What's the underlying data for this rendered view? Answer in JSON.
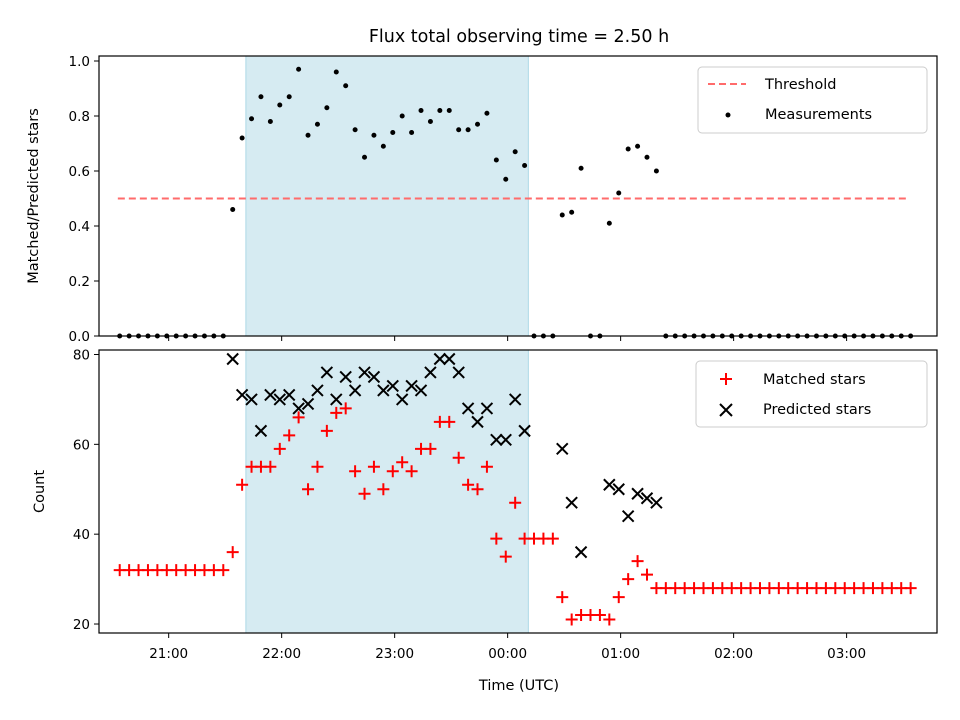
{
  "chart_data": [
    {
      "type": "scatter",
      "title": "Flux total observing time = 2.50 h",
      "xlabel": "",
      "ylabel": "Matched/Predicted stars",
      "ylim": [
        0,
        1.0
      ],
      "yticks": [
        "0.0",
        "0.2",
        "0.4",
        "0.6",
        "0.8",
        "1.0"
      ],
      "xlim": [
        "20:23",
        "03:48"
      ],
      "shaded_region": [
        "21:41",
        "00:11"
      ],
      "grid": false,
      "legend_position": "top-right",
      "threshold": {
        "name": "Threshold",
        "value": 0.5,
        "x_range": [
          "20:33",
          "03:33"
        ],
        "color": "#ff6b6b"
      },
      "series": [
        {
          "name": "Measurements",
          "color": "#000000",
          "marker": "dot",
          "points": [
            [
              "20:34",
              0.0
            ],
            [
              "20:39",
              0.0
            ],
            [
              "20:44",
              0.0
            ],
            [
              "20:49",
              0.0
            ],
            [
              "20:54",
              0.0
            ],
            [
              "20:59",
              0.0
            ],
            [
              "21:04",
              0.0
            ],
            [
              "21:09",
              0.0
            ],
            [
              "21:14",
              0.0
            ],
            [
              "21:19",
              0.0
            ],
            [
              "21:24",
              0.0
            ],
            [
              "21:29",
              0.0
            ],
            [
              "21:34",
              0.46
            ],
            [
              "21:39",
              0.72
            ],
            [
              "21:44",
              0.79
            ],
            [
              "21:49",
              0.87
            ],
            [
              "21:54",
              0.78
            ],
            [
              "21:59",
              0.84
            ],
            [
              "22:04",
              0.87
            ],
            [
              "22:09",
              0.97
            ],
            [
              "22:14",
              0.73
            ],
            [
              "22:19",
              0.77
            ],
            [
              "22:24",
              0.83
            ],
            [
              "22:29",
              0.96
            ],
            [
              "22:34",
              0.91
            ],
            [
              "22:39",
              0.75
            ],
            [
              "22:44",
              0.65
            ],
            [
              "22:49",
              0.73
            ],
            [
              "22:54",
              0.69
            ],
            [
              "22:59",
              0.74
            ],
            [
              "23:04",
              0.8
            ],
            [
              "23:09",
              0.74
            ],
            [
              "23:14",
              0.82
            ],
            [
              "23:19",
              0.78
            ],
            [
              "23:24",
              0.82
            ],
            [
              "23:29",
              0.82
            ],
            [
              "23:34",
              0.75
            ],
            [
              "23:39",
              0.75
            ],
            [
              "23:44",
              0.77
            ],
            [
              "23:49",
              0.81
            ],
            [
              "23:54",
              0.64
            ],
            [
              "23:59",
              0.57
            ],
            [
              "00:04",
              0.67
            ],
            [
              "00:09",
              0.62
            ],
            [
              "00:14",
              0.0
            ],
            [
              "00:19",
              0.0
            ],
            [
              "00:24",
              0.0
            ],
            [
              "00:29",
              0.44
            ],
            [
              "00:34",
              0.45
            ],
            [
              "00:39",
              0.61
            ],
            [
              "00:44",
              0.0
            ],
            [
              "00:49",
              0.0
            ],
            [
              "00:54",
              0.41
            ],
            [
              "00:59",
              0.52
            ],
            [
              "01:04",
              0.68
            ],
            [
              "01:09",
              0.69
            ],
            [
              "01:14",
              0.65
            ],
            [
              "01:19",
              0.6
            ],
            [
              "01:24",
              0.0
            ],
            [
              "01:29",
              0.0
            ],
            [
              "01:34",
              0.0
            ],
            [
              "01:39",
              0.0
            ],
            [
              "01:44",
              0.0
            ],
            [
              "01:49",
              0.0
            ],
            [
              "01:54",
              0.0
            ],
            [
              "01:59",
              0.0
            ],
            [
              "02:04",
              0.0
            ],
            [
              "02:09",
              0.0
            ],
            [
              "02:14",
              0.0
            ],
            [
              "02:19",
              0.0
            ],
            [
              "02:24",
              0.0
            ],
            [
              "02:29",
              0.0
            ],
            [
              "02:34",
              0.0
            ],
            [
              "02:39",
              0.0
            ],
            [
              "02:44",
              0.0
            ],
            [
              "02:49",
              0.0
            ],
            [
              "02:54",
              0.0
            ],
            [
              "02:59",
              0.0
            ],
            [
              "03:04",
              0.0
            ],
            [
              "03:09",
              0.0
            ],
            [
              "03:14",
              0.0
            ],
            [
              "03:19",
              0.0
            ],
            [
              "03:24",
              0.0
            ],
            [
              "03:29",
              0.0
            ],
            [
              "03:34",
              0.0
            ]
          ]
        }
      ]
    },
    {
      "type": "scatter",
      "title": "",
      "xlabel": "Time (UTC)",
      "ylabel": "Count",
      "ylim": [
        18,
        81
      ],
      "yticks": [
        "20",
        "40",
        "60",
        "80"
      ],
      "xlim": [
        "20:23",
        "03:48"
      ],
      "xticks": [
        "21:00",
        "22:00",
        "23:00",
        "00:00",
        "01:00",
        "02:00",
        "03:00"
      ],
      "shaded_region": [
        "21:41",
        "00:11"
      ],
      "grid": false,
      "legend_position": "top-right",
      "series": [
        {
          "name": "Matched stars",
          "color": "#ff0000",
          "marker": "plus",
          "points": [
            [
              "20:34",
              32
            ],
            [
              "20:39",
              32
            ],
            [
              "20:44",
              32
            ],
            [
              "20:49",
              32
            ],
            [
              "20:54",
              32
            ],
            [
              "20:59",
              32
            ],
            [
              "21:04",
              32
            ],
            [
              "21:09",
              32
            ],
            [
              "21:14",
              32
            ],
            [
              "21:19",
              32
            ],
            [
              "21:24",
              32
            ],
            [
              "21:29",
              32
            ],
            [
              "21:34",
              36
            ],
            [
              "21:39",
              51
            ],
            [
              "21:44",
              55
            ],
            [
              "21:49",
              55
            ],
            [
              "21:54",
              55
            ],
            [
              "21:59",
              59
            ],
            [
              "22:04",
              62
            ],
            [
              "22:09",
              66
            ],
            [
              "22:14",
              50
            ],
            [
              "22:19",
              55
            ],
            [
              "22:24",
              63
            ],
            [
              "22:29",
              67
            ],
            [
              "22:34",
              68
            ],
            [
              "22:39",
              54
            ],
            [
              "22:44",
              49
            ],
            [
              "22:49",
              55
            ],
            [
              "22:54",
              50
            ],
            [
              "22:59",
              54
            ],
            [
              "23:04",
              56
            ],
            [
              "23:09",
              54
            ],
            [
              "23:14",
              59
            ],
            [
              "23:19",
              59
            ],
            [
              "23:24",
              65
            ],
            [
              "23:29",
              65
            ],
            [
              "23:34",
              57
            ],
            [
              "23:39",
              51
            ],
            [
              "23:44",
              50
            ],
            [
              "23:49",
              55
            ],
            [
              "23:54",
              39
            ],
            [
              "23:59",
              35
            ],
            [
              "00:04",
              47
            ],
            [
              "00:09",
              39
            ],
            [
              "00:14",
              39
            ],
            [
              "00:19",
              39
            ],
            [
              "00:24",
              39
            ],
            [
              "00:29",
              26
            ],
            [
              "00:34",
              21
            ],
            [
              "00:39",
              22
            ],
            [
              "00:44",
              22
            ],
            [
              "00:49",
              22
            ],
            [
              "00:54",
              21
            ],
            [
              "00:59",
              26
            ],
            [
              "01:04",
              30
            ],
            [
              "01:09",
              34
            ],
            [
              "01:14",
              31
            ],
            [
              "01:19",
              28
            ],
            [
              "01:24",
              28
            ],
            [
              "01:29",
              28
            ],
            [
              "01:34",
              28
            ],
            [
              "01:39",
              28
            ],
            [
              "01:44",
              28
            ],
            [
              "01:49",
              28
            ],
            [
              "01:54",
              28
            ],
            [
              "01:59",
              28
            ],
            [
              "02:04",
              28
            ],
            [
              "02:09",
              28
            ],
            [
              "02:14",
              28
            ],
            [
              "02:19",
              28
            ],
            [
              "02:24",
              28
            ],
            [
              "02:29",
              28
            ],
            [
              "02:34",
              28
            ],
            [
              "02:39",
              28
            ],
            [
              "02:44",
              28
            ],
            [
              "02:49",
              28
            ],
            [
              "02:54",
              28
            ],
            [
              "02:59",
              28
            ],
            [
              "03:04",
              28
            ],
            [
              "03:09",
              28
            ],
            [
              "03:14",
              28
            ],
            [
              "03:19",
              28
            ],
            [
              "03:24",
              28
            ],
            [
              "03:29",
              28
            ],
            [
              "03:34",
              28
            ]
          ]
        },
        {
          "name": "Predicted stars",
          "color": "#000000",
          "marker": "x",
          "points": [
            [
              "21:34",
              79
            ],
            [
              "21:39",
              71
            ],
            [
              "21:44",
              70
            ],
            [
              "21:49",
              63
            ],
            [
              "21:54",
              71
            ],
            [
              "21:59",
              70
            ],
            [
              "22:04",
              71
            ],
            [
              "22:09",
              68
            ],
            [
              "22:14",
              69
            ],
            [
              "22:19",
              72
            ],
            [
              "22:24",
              76
            ],
            [
              "22:29",
              70
            ],
            [
              "22:34",
              75
            ],
            [
              "22:39",
              72
            ],
            [
              "22:44",
              76
            ],
            [
              "22:49",
              75
            ],
            [
              "22:54",
              72
            ],
            [
              "22:59",
              73
            ],
            [
              "23:04",
              70
            ],
            [
              "23:09",
              73
            ],
            [
              "23:14",
              72
            ],
            [
              "23:19",
              76
            ],
            [
              "23:24",
              79
            ],
            [
              "23:29",
              79
            ],
            [
              "23:34",
              76
            ],
            [
              "23:39",
              68
            ],
            [
              "23:44",
              65
            ],
            [
              "23:49",
              68
            ],
            [
              "23:54",
              61
            ],
            [
              "23:59",
              61
            ],
            [
              "00:04",
              70
            ],
            [
              "00:09",
              63
            ],
            [
              "00:29",
              59
            ],
            [
              "00:34",
              47
            ],
            [
              "00:39",
              36
            ],
            [
              "00:54",
              51
            ],
            [
              "00:59",
              50
            ],
            [
              "01:04",
              44
            ],
            [
              "01:09",
              49
            ],
            [
              "01:14",
              48
            ],
            [
              "01:19",
              47
            ]
          ]
        }
      ]
    }
  ]
}
